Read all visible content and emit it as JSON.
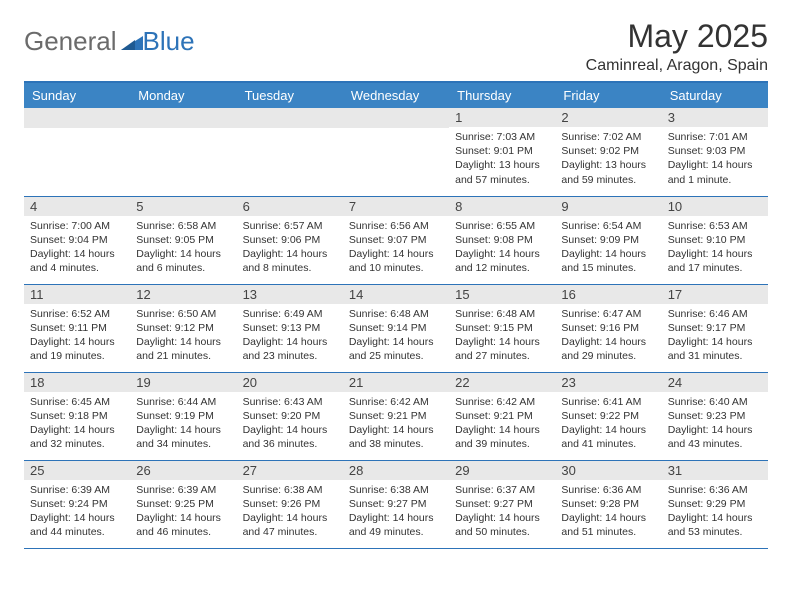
{
  "brand": {
    "part1": "General",
    "part2": "Blue"
  },
  "title": "May 2025",
  "location": "Caminreal, Aragon, Spain",
  "colors": {
    "header_bg": "#3b84c4",
    "header_text": "#ffffff",
    "border": "#2d73b8",
    "daynum_bg": "#e8e8e8",
    "text": "#333333",
    "logo_gray": "#6b6b6b",
    "logo_blue": "#2d73b8"
  },
  "weekdays": [
    "Sunday",
    "Monday",
    "Tuesday",
    "Wednesday",
    "Thursday",
    "Friday",
    "Saturday"
  ],
  "weeks": [
    [
      null,
      null,
      null,
      null,
      {
        "n": "1",
        "sunrise": "Sunrise: 7:03 AM",
        "sunset": "Sunset: 9:01 PM",
        "daylight": "Daylight: 13 hours and 57 minutes."
      },
      {
        "n": "2",
        "sunrise": "Sunrise: 7:02 AM",
        "sunset": "Sunset: 9:02 PM",
        "daylight": "Daylight: 13 hours and 59 minutes."
      },
      {
        "n": "3",
        "sunrise": "Sunrise: 7:01 AM",
        "sunset": "Sunset: 9:03 PM",
        "daylight": "Daylight: 14 hours and 1 minute."
      }
    ],
    [
      {
        "n": "4",
        "sunrise": "Sunrise: 7:00 AM",
        "sunset": "Sunset: 9:04 PM",
        "daylight": "Daylight: 14 hours and 4 minutes."
      },
      {
        "n": "5",
        "sunrise": "Sunrise: 6:58 AM",
        "sunset": "Sunset: 9:05 PM",
        "daylight": "Daylight: 14 hours and 6 minutes."
      },
      {
        "n": "6",
        "sunrise": "Sunrise: 6:57 AM",
        "sunset": "Sunset: 9:06 PM",
        "daylight": "Daylight: 14 hours and 8 minutes."
      },
      {
        "n": "7",
        "sunrise": "Sunrise: 6:56 AM",
        "sunset": "Sunset: 9:07 PM",
        "daylight": "Daylight: 14 hours and 10 minutes."
      },
      {
        "n": "8",
        "sunrise": "Sunrise: 6:55 AM",
        "sunset": "Sunset: 9:08 PM",
        "daylight": "Daylight: 14 hours and 12 minutes."
      },
      {
        "n": "9",
        "sunrise": "Sunrise: 6:54 AM",
        "sunset": "Sunset: 9:09 PM",
        "daylight": "Daylight: 14 hours and 15 minutes."
      },
      {
        "n": "10",
        "sunrise": "Sunrise: 6:53 AM",
        "sunset": "Sunset: 9:10 PM",
        "daylight": "Daylight: 14 hours and 17 minutes."
      }
    ],
    [
      {
        "n": "11",
        "sunrise": "Sunrise: 6:52 AM",
        "sunset": "Sunset: 9:11 PM",
        "daylight": "Daylight: 14 hours and 19 minutes."
      },
      {
        "n": "12",
        "sunrise": "Sunrise: 6:50 AM",
        "sunset": "Sunset: 9:12 PM",
        "daylight": "Daylight: 14 hours and 21 minutes."
      },
      {
        "n": "13",
        "sunrise": "Sunrise: 6:49 AM",
        "sunset": "Sunset: 9:13 PM",
        "daylight": "Daylight: 14 hours and 23 minutes."
      },
      {
        "n": "14",
        "sunrise": "Sunrise: 6:48 AM",
        "sunset": "Sunset: 9:14 PM",
        "daylight": "Daylight: 14 hours and 25 minutes."
      },
      {
        "n": "15",
        "sunrise": "Sunrise: 6:48 AM",
        "sunset": "Sunset: 9:15 PM",
        "daylight": "Daylight: 14 hours and 27 minutes."
      },
      {
        "n": "16",
        "sunrise": "Sunrise: 6:47 AM",
        "sunset": "Sunset: 9:16 PM",
        "daylight": "Daylight: 14 hours and 29 minutes."
      },
      {
        "n": "17",
        "sunrise": "Sunrise: 6:46 AM",
        "sunset": "Sunset: 9:17 PM",
        "daylight": "Daylight: 14 hours and 31 minutes."
      }
    ],
    [
      {
        "n": "18",
        "sunrise": "Sunrise: 6:45 AM",
        "sunset": "Sunset: 9:18 PM",
        "daylight": "Daylight: 14 hours and 32 minutes."
      },
      {
        "n": "19",
        "sunrise": "Sunrise: 6:44 AM",
        "sunset": "Sunset: 9:19 PM",
        "daylight": "Daylight: 14 hours and 34 minutes."
      },
      {
        "n": "20",
        "sunrise": "Sunrise: 6:43 AM",
        "sunset": "Sunset: 9:20 PM",
        "daylight": "Daylight: 14 hours and 36 minutes."
      },
      {
        "n": "21",
        "sunrise": "Sunrise: 6:42 AM",
        "sunset": "Sunset: 9:21 PM",
        "daylight": "Daylight: 14 hours and 38 minutes."
      },
      {
        "n": "22",
        "sunrise": "Sunrise: 6:42 AM",
        "sunset": "Sunset: 9:21 PM",
        "daylight": "Daylight: 14 hours and 39 minutes."
      },
      {
        "n": "23",
        "sunrise": "Sunrise: 6:41 AM",
        "sunset": "Sunset: 9:22 PM",
        "daylight": "Daylight: 14 hours and 41 minutes."
      },
      {
        "n": "24",
        "sunrise": "Sunrise: 6:40 AM",
        "sunset": "Sunset: 9:23 PM",
        "daylight": "Daylight: 14 hours and 43 minutes."
      }
    ],
    [
      {
        "n": "25",
        "sunrise": "Sunrise: 6:39 AM",
        "sunset": "Sunset: 9:24 PM",
        "daylight": "Daylight: 14 hours and 44 minutes."
      },
      {
        "n": "26",
        "sunrise": "Sunrise: 6:39 AM",
        "sunset": "Sunset: 9:25 PM",
        "daylight": "Daylight: 14 hours and 46 minutes."
      },
      {
        "n": "27",
        "sunrise": "Sunrise: 6:38 AM",
        "sunset": "Sunset: 9:26 PM",
        "daylight": "Daylight: 14 hours and 47 minutes."
      },
      {
        "n": "28",
        "sunrise": "Sunrise: 6:38 AM",
        "sunset": "Sunset: 9:27 PM",
        "daylight": "Daylight: 14 hours and 49 minutes."
      },
      {
        "n": "29",
        "sunrise": "Sunrise: 6:37 AM",
        "sunset": "Sunset: 9:27 PM",
        "daylight": "Daylight: 14 hours and 50 minutes."
      },
      {
        "n": "30",
        "sunrise": "Sunrise: 6:36 AM",
        "sunset": "Sunset: 9:28 PM",
        "daylight": "Daylight: 14 hours and 51 minutes."
      },
      {
        "n": "31",
        "sunrise": "Sunrise: 6:36 AM",
        "sunset": "Sunset: 9:29 PM",
        "daylight": "Daylight: 14 hours and 53 minutes."
      }
    ]
  ]
}
